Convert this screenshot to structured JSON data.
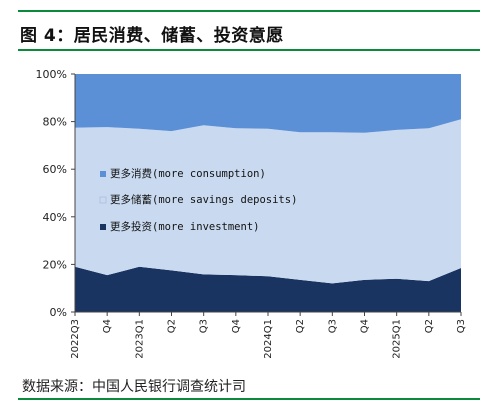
{
  "figure": {
    "title": "图 4：居民消费、储蓄、投资意愿",
    "source": "数据来源：中国人民银行调查统计司"
  },
  "chart_data": {
    "type": "area",
    "stacked": true,
    "categories": [
      "2022Q3",
      "Q4",
      "2023Q1",
      "Q2",
      "Q3",
      "Q4",
      "2024Q1",
      "Q2",
      "Q3",
      "Q4",
      "2025Q1",
      "Q2",
      "Q3"
    ],
    "ylim": [
      0,
      100
    ],
    "yticks": [
      "0%",
      "20%",
      "40%",
      "60%",
      "80%",
      "100%"
    ],
    "legend_position": "center-left",
    "series": [
      {
        "name": "更多投资(more investment)",
        "color": "#1a3461",
        "values": [
          19,
          15.5,
          19,
          17.5,
          15.8,
          15.5,
          15,
          13.5,
          12,
          13.5,
          14,
          13,
          18.5
        ]
      },
      {
        "name": "更多储蓄(more savings deposits)",
        "color": "#c9daf0",
        "values": [
          58.5,
          62.2,
          58,
          58.5,
          62.7,
          61.7,
          62,
          62,
          63.5,
          61.8,
          62.5,
          64.2,
          62.5
        ]
      },
      {
        "name": "更多消费(more consumption)",
        "color": "#5b8fd6",
        "values": [
          22.5,
          22.3,
          23,
          24,
          21.5,
          22.8,
          23,
          24.5,
          24.5,
          24.7,
          23.5,
          22.8,
          19
        ]
      }
    ]
  }
}
